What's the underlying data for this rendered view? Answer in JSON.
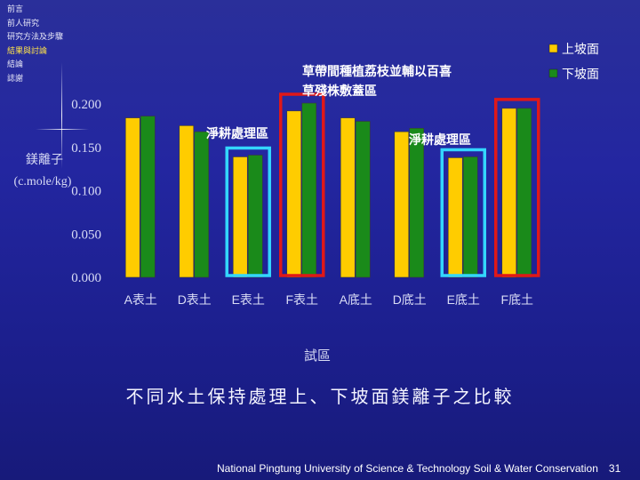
{
  "nav": {
    "items": [
      "前言",
      "前人研究",
      "研究方法及步驟",
      "結果與討論",
      "結論",
      "誌謝"
    ],
    "active_index": 3
  },
  "annotations": {
    "top_line1": "草帶間種植荔枝並輔以百喜",
    "top_line2": "草殘株敷蓋區",
    "clean_left": "淨耕處理區",
    "clean_right": "淨耕處理區"
  },
  "caption": "不同水土保持處理上、下坡面鎂離子之比較",
  "footer": {
    "text": "National Pingtung University of Science & Technology   Soil & Water Conservation",
    "page": "31"
  },
  "colors": {
    "upper": "#ffcc00",
    "lower": "#1a8a1a",
    "highlight_clean": "#33d6ff",
    "highlight_grass": "#e01818"
  },
  "chart_data": {
    "type": "bar",
    "categories": [
      "A表土",
      "D表土",
      "E表土",
      "F表土",
      "A底土",
      "D底土",
      "E底土",
      "F底土"
    ],
    "series": [
      {
        "name": "上坡面",
        "values": [
          0.184,
          0.175,
          0.139,
          0.192,
          0.184,
          0.168,
          0.138,
          0.195
        ]
      },
      {
        "name": "下坡面",
        "values": [
          0.186,
          0.168,
          0.141,
          0.201,
          0.18,
          0.172,
          0.139,
          0.195
        ]
      }
    ],
    "ylabel_line1": "鎂離子",
    "ylabel_line2": "(c.mole/kg)",
    "xlabel": "試區",
    "yticks": [
      "0.000",
      "0.050",
      "0.100",
      "0.150",
      "0.200"
    ],
    "ylim": [
      0,
      0.2
    ],
    "legend_position": "top-right",
    "highlight_clean": [
      "E表土",
      "E底土"
    ],
    "highlight_grass": [
      "F表土",
      "F底土"
    ]
  }
}
